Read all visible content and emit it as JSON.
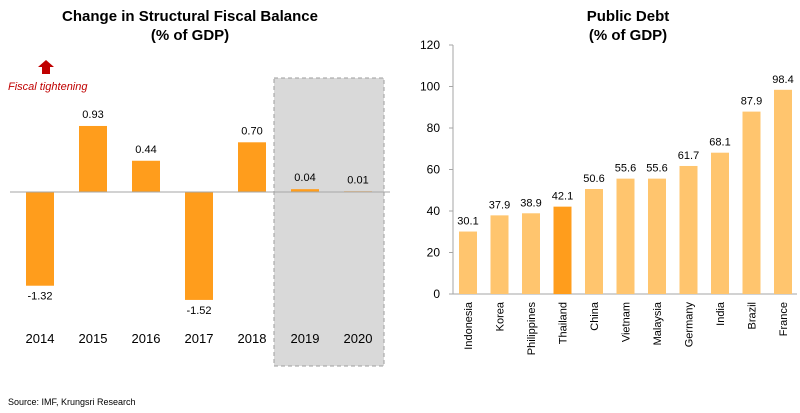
{
  "chart_data": [
    {
      "type": "bar",
      "title": "Change in Structural Fiscal Balance",
      "subtitle": "(% of GDP)",
      "categories": [
        "2014",
        "2015",
        "2016",
        "2017",
        "2018",
        "2019",
        "2020"
      ],
      "values": [
        -1.32,
        0.93,
        0.44,
        -1.52,
        0.7,
        0.04,
        0.01
      ],
      "value_labels": [
        "-1.32",
        "0.93",
        "0.44",
        "-1.52",
        "0.70",
        "0.04",
        "0.01"
      ],
      "forecast_categories": [
        "2019",
        "2020"
      ],
      "annotation": "Fiscal tightening",
      "ylim": [
        -1.6,
        1.1
      ],
      "colors": {
        "bar": "#ff9d1c",
        "forecast_shade": "#d9d9d9",
        "annotation": "#c00000"
      }
    },
    {
      "type": "bar",
      "title": "Public Debt",
      "subtitle": "(% of GDP)",
      "categories": [
        "Indonesia",
        "Korea",
        "Philippines",
        "Thailand",
        "China",
        "Vietnam",
        "Malaysia",
        "Germany",
        "India",
        "Brazil",
        "France"
      ],
      "values": [
        30.1,
        37.9,
        38.9,
        42.1,
        50.6,
        55.6,
        55.6,
        61.7,
        68.1,
        87.9,
        98.4
      ],
      "value_labels": [
        "30.1",
        "37.9",
        "38.9",
        "42.1",
        "50.6",
        "55.6",
        "55.6",
        "61.7",
        "68.1",
        "87.9",
        "98.4"
      ],
      "highlight": "Thailand",
      "ylim": [
        0,
        120
      ],
      "yticks": [
        0,
        20,
        40,
        60,
        80,
        100,
        120
      ],
      "colors": {
        "bar": "#ffc56e",
        "highlight": "#ff9d1c",
        "highlight_label": "#ed7d31"
      }
    }
  ],
  "source": "Source: IMF, Krungsri Research"
}
